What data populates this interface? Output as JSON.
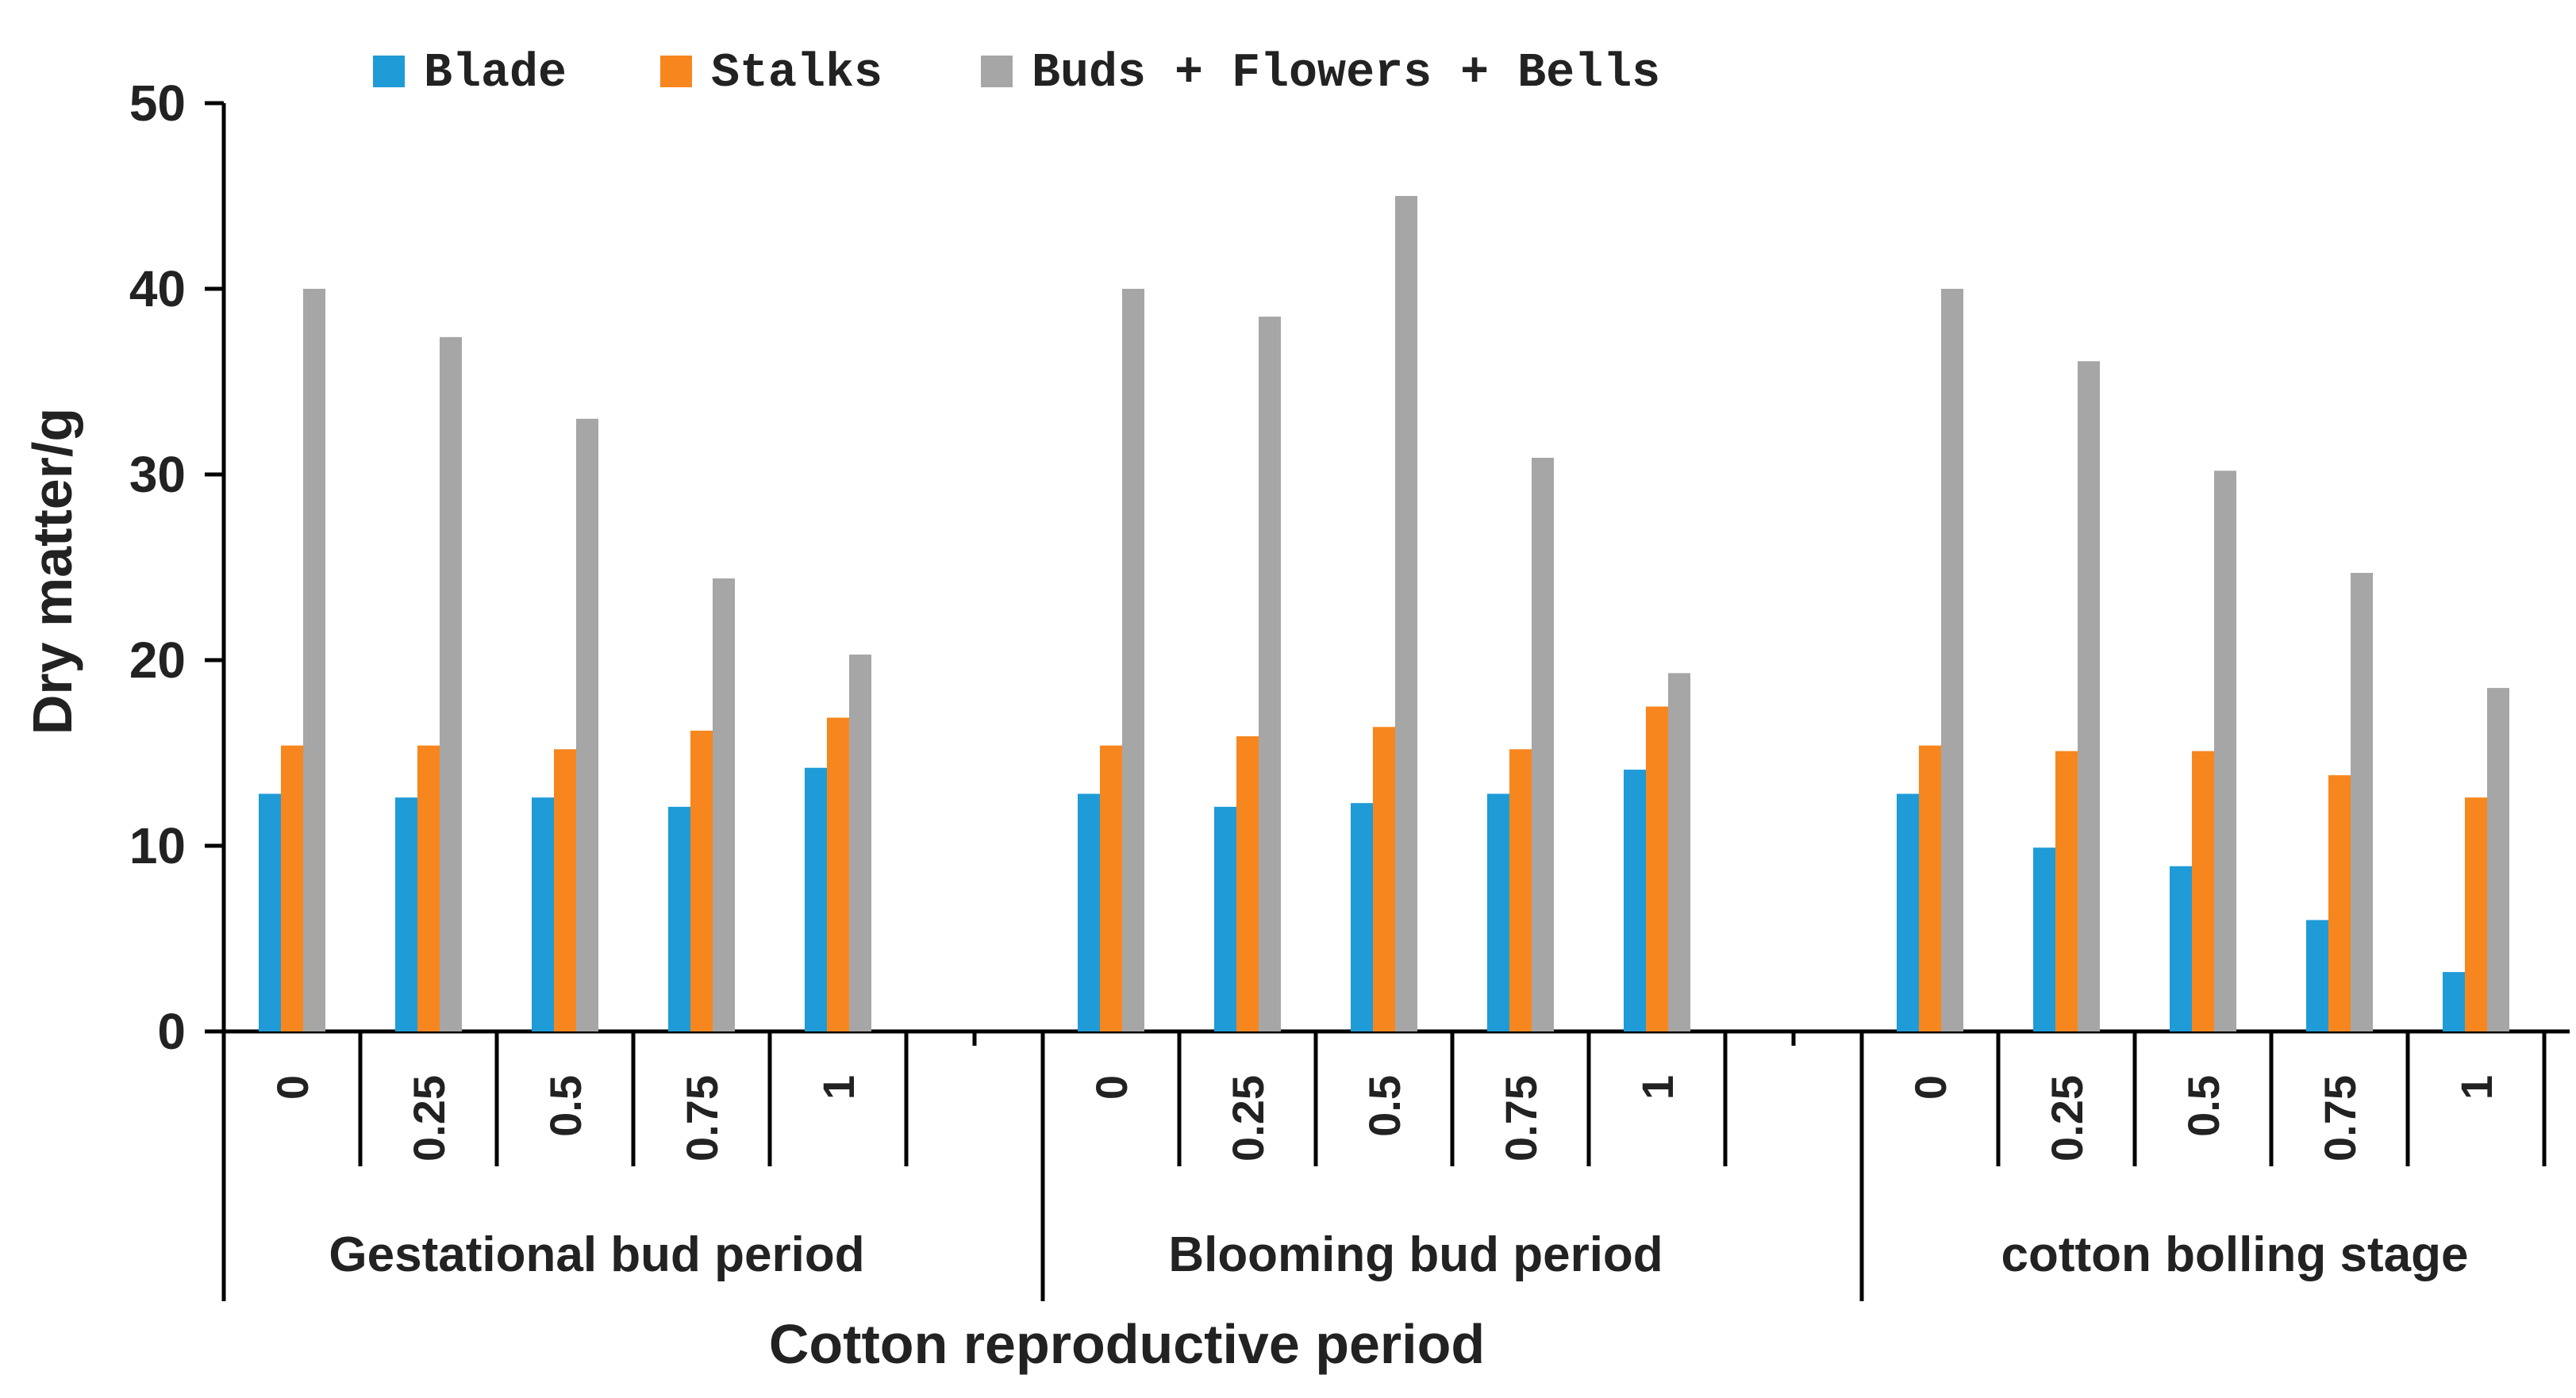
{
  "chart_data": {
    "type": "bar",
    "title": "",
    "xlabel": "Cotton reproductive period",
    "ylabel": "Dry matter/g",
    "ylim": [
      0,
      50
    ],
    "yticks": [
      "0",
      "10",
      "20",
      "30",
      "40",
      "50"
    ],
    "legend_position": "top",
    "groups": [
      {
        "label": "Gestational bud period",
        "categories": [
          "0",
          "0.25",
          "0.5",
          "0.75",
          "1"
        ]
      },
      {
        "label": "Blooming bud period",
        "categories": [
          "0",
          "0.25",
          "0.5",
          "0.75",
          "1"
        ]
      },
      {
        "label": "cotton bolling stage",
        "categories": [
          "0",
          "0.25",
          "0.5",
          "0.75",
          "1"
        ]
      }
    ],
    "series": [
      {
        "name": "Blade",
        "color": "#1f9bd7",
        "values": [
          12.8,
          12.6,
          12.6,
          12.1,
          14.2,
          12.8,
          12.1,
          12.3,
          12.8,
          14.1,
          12.8,
          9.9,
          8.9,
          6.0,
          3.2
        ]
      },
      {
        "name": "Stalks",
        "color": "#f7861e",
        "values": [
          15.4,
          15.4,
          15.2,
          16.2,
          16.9,
          15.4,
          15.9,
          16.4,
          15.2,
          17.5,
          15.4,
          15.1,
          15.1,
          13.8,
          12.6
        ]
      },
      {
        "name": "Buds + Flowers + Bells",
        "color": "#a6a6a6",
        "values": [
          40.0,
          37.4,
          33.0,
          24.4,
          20.3,
          40.0,
          38.5,
          45.0,
          30.9,
          19.3,
          40.0,
          36.1,
          30.2,
          24.7,
          18.5
        ]
      }
    ]
  }
}
